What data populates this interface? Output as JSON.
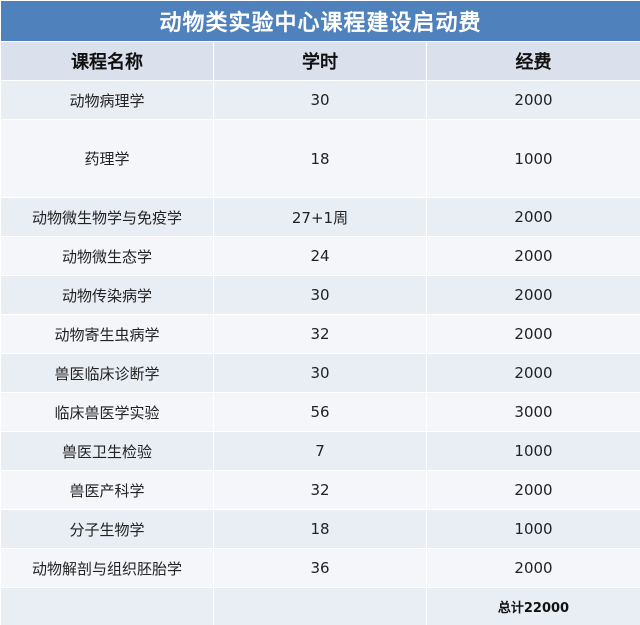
{
  "table": {
    "title": "动物类实验中心课程建设启动费",
    "headers": [
      "课程名称",
      "学时",
      "经费"
    ],
    "rows": [
      {
        "name": "动物病理学",
        "hours": "30",
        "cost": "2000"
      },
      {
        "name": "药理学",
        "hours": "18",
        "cost": "1000"
      },
      {
        "name": "动物微生物学与免疫学",
        "hours": "27+1周",
        "cost": "2000"
      },
      {
        "name": "动物微生态学",
        "hours": "24",
        "cost": "2000"
      },
      {
        "name": "动物传染病学",
        "hours": "30",
        "cost": "2000"
      },
      {
        "name": "动物寄生虫病学",
        "hours": "32",
        "cost": "2000"
      },
      {
        "name": "兽医临床诊断学",
        "hours": "30",
        "cost": "2000"
      },
      {
        "name": "临床兽医学实验",
        "hours": "56",
        "cost": "3000"
      },
      {
        "name": "兽医卫生检验",
        "hours": "7",
        "cost": "1000"
      },
      {
        "name": "兽医产科学",
        "hours": "32",
        "cost": "2000"
      },
      {
        "name": "分子生物学",
        "hours": "18",
        "cost": "1000"
      },
      {
        "name": "动物解剖与组织胚胎学",
        "hours": "36",
        "cost": "2000"
      }
    ],
    "total": "总计22000"
  }
}
